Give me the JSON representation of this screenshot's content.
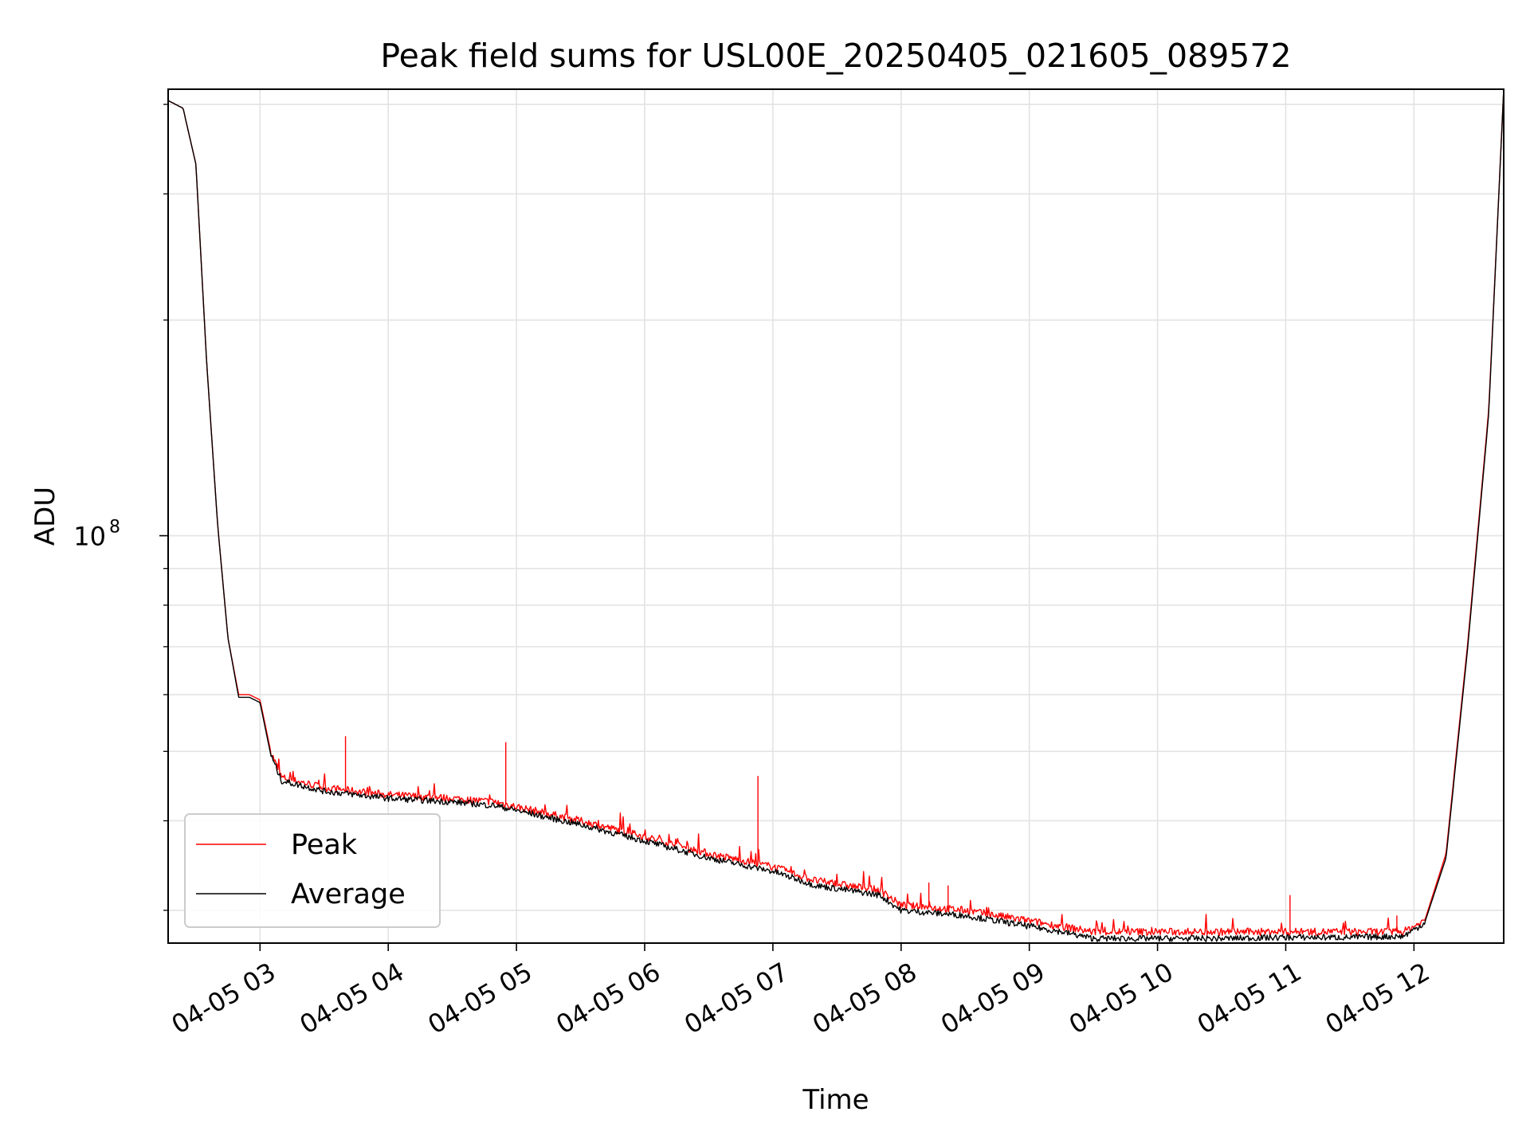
{
  "chart_data": {
    "type": "line",
    "title": "Peak field sums for USL00E_20250405_021605_089572",
    "xlabel": "Time",
    "ylabel": "ADU",
    "yscale": "log",
    "grid": true,
    "legend_position": "lower-left",
    "xlim": [
      "2025-04-05T02:17",
      "2025-04-05T12:42"
    ],
    "ylim": [
      27000000,
      420000000
    ],
    "x_ticks": [
      {
        "t": "2025-04-05T03:00",
        "label": "04-05 03"
      },
      {
        "t": "2025-04-05T04:00",
        "label": "04-05 04"
      },
      {
        "t": "2025-04-05T05:00",
        "label": "04-05 05"
      },
      {
        "t": "2025-04-05T06:00",
        "label": "04-05 06"
      },
      {
        "t": "2025-04-05T07:00",
        "label": "04-05 07"
      },
      {
        "t": "2025-04-05T08:00",
        "label": "04-05 08"
      },
      {
        "t": "2025-04-05T09:00",
        "label": "04-05 09"
      },
      {
        "t": "2025-04-05T10:00",
        "label": "04-05 10"
      },
      {
        "t": "2025-04-05T11:00",
        "label": "04-05 11"
      },
      {
        "t": "2025-04-05T12:00",
        "label": "04-05 12"
      }
    ],
    "y_major_ticks": [
      {
        "value": 100000000,
        "label_base": "10",
        "label_exp": "8"
      }
    ],
    "y_minor_ticks": [
      30000000,
      40000000,
      50000000,
      60000000,
      70000000,
      80000000,
      90000000,
      200000000,
      300000000,
      400000000
    ],
    "series": [
      {
        "name": "Peak",
        "color": "#ff0000",
        "x": [
          "2025-04-05T02:17",
          "2025-04-05T02:24",
          "2025-04-05T02:30",
          "2025-04-05T02:35",
          "2025-04-05T02:40",
          "2025-04-05T02:45",
          "2025-04-05T02:50",
          "2025-04-05T02:55",
          "2025-04-05T03:00",
          "2025-04-05T03:05",
          "2025-04-05T03:10",
          "2025-04-05T03:30",
          "2025-04-05T04:00",
          "2025-04-05T04:30",
          "2025-04-05T04:50",
          "2025-04-05T05:30",
          "2025-04-05T06:00",
          "2025-04-05T06:30",
          "2025-04-05T07:00",
          "2025-04-05T07:20",
          "2025-04-05T07:50",
          "2025-04-05T08:00",
          "2025-04-05T08:30",
          "2025-04-05T09:00",
          "2025-04-05T09:15",
          "2025-04-05T09:30",
          "2025-04-05T10:00",
          "2025-04-05T10:30",
          "2025-04-05T11:00",
          "2025-04-05T11:30",
          "2025-04-05T11:55",
          "2025-04-05T12:05",
          "2025-04-05T12:15",
          "2025-04-05T12:25",
          "2025-04-05T12:35",
          "2025-04-05T12:42"
        ],
        "y": [
          405000000,
          395000000,
          330000000,
          175000000,
          105000000,
          72000000,
          60000000,
          60000000,
          59000000,
          50000000,
          46000000,
          44500000,
          43500000,
          43000000,
          42500000,
          40000000,
          38000000,
          36000000,
          34500000,
          33000000,
          32000000,
          30500000,
          30000000,
          29000000,
          28500000,
          28000000,
          28000000,
          28000000,
          28000000,
          28000000,
          28000000,
          29000000,
          36000000,
          70000000,
          150000000,
          420000000
        ],
        "spikes": [
          {
            "x": "2025-04-05T03:40",
            "y": 52500000
          },
          {
            "x": "2025-04-05T04:55",
            "y": 51500000
          },
          {
            "x": "2025-04-05T06:53",
            "y": 46200000
          },
          {
            "x": "2025-04-05T08:13",
            "y": 32800000
          },
          {
            "x": "2025-04-05T08:22",
            "y": 32500000
          },
          {
            "x": "2025-04-05T11:02",
            "y": 31500000
          },
          {
            "x": "2025-04-05T11:52",
            "y": 29500000
          }
        ]
      },
      {
        "name": "Average",
        "color": "#000000",
        "x": [
          "2025-04-05T02:17",
          "2025-04-05T02:24",
          "2025-04-05T02:30",
          "2025-04-05T02:35",
          "2025-04-05T02:40",
          "2025-04-05T02:45",
          "2025-04-05T02:50",
          "2025-04-05T02:55",
          "2025-04-05T03:00",
          "2025-04-05T03:05",
          "2025-04-05T03:10",
          "2025-04-05T03:30",
          "2025-04-05T04:00",
          "2025-04-05T04:30",
          "2025-04-05T04:50",
          "2025-04-05T05:30",
          "2025-04-05T06:00",
          "2025-04-05T06:30",
          "2025-04-05T07:00",
          "2025-04-05T07:20",
          "2025-04-05T07:50",
          "2025-04-05T08:00",
          "2025-04-05T08:30",
          "2025-04-05T09:00",
          "2025-04-05T09:15",
          "2025-04-05T09:30",
          "2025-04-05T10:00",
          "2025-04-05T10:30",
          "2025-04-05T11:00",
          "2025-04-05T11:30",
          "2025-04-05T11:55",
          "2025-04-05T12:05",
          "2025-04-05T12:15",
          "2025-04-05T12:25",
          "2025-04-05T12:35",
          "2025-04-05T12:42"
        ],
        "y": [
          405000000,
          395000000,
          330000000,
          175000000,
          105000000,
          72000000,
          59500000,
          59500000,
          58500000,
          49500000,
          45500000,
          44000000,
          43000000,
          42500000,
          42000000,
          39500000,
          37500000,
          35500000,
          34000000,
          32500000,
          31500000,
          30000000,
          29500000,
          28500000,
          28000000,
          27400000,
          27400000,
          27400000,
          27500000,
          27500000,
          27600000,
          28800000,
          35500000,
          69000000,
          148000000,
          420000000
        ]
      }
    ]
  }
}
